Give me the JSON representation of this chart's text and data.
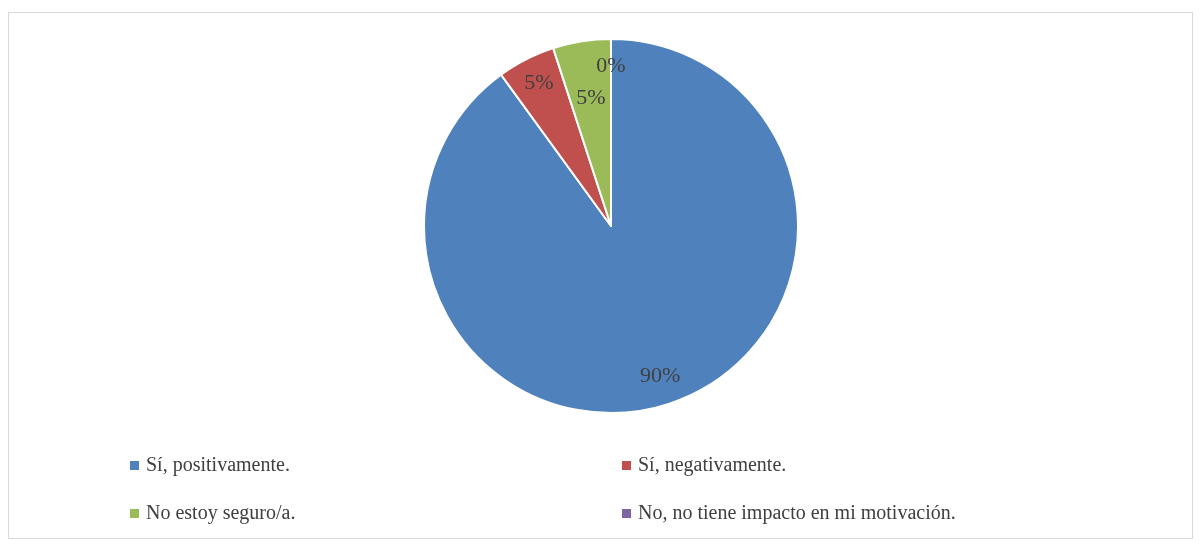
{
  "chart_data": {
    "type": "pie",
    "categories": [
      "Sí, positivamente.",
      "Sí, negativamente.",
      "No estoy seguro/a.",
      "No, no tiene impacto en mi motivación."
    ],
    "values": [
      90,
      5,
      5,
      0
    ],
    "colors": [
      "#4f81bd",
      "#c0504d",
      "#9bbb59",
      "#8064a2"
    ],
    "value_labels": [
      "90%",
      "5%",
      "5%",
      "0%"
    ],
    "legend": "bottom"
  }
}
